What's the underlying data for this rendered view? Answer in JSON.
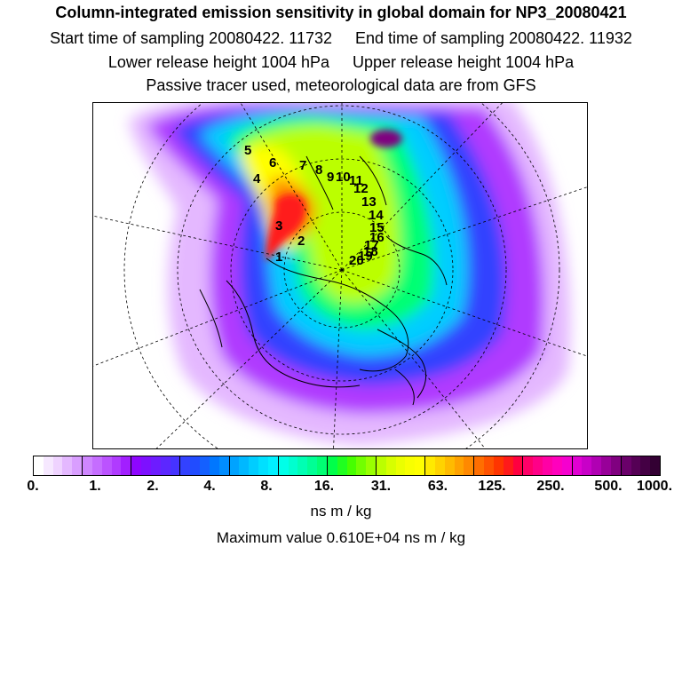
{
  "header": {
    "title": "Column-integrated emission sensitivity in global domain for NP3_20080421",
    "start_time": "Start time of sampling 20080422. 11732",
    "end_time": "End time of sampling 20080422. 11932",
    "lower_release": "Lower release height 1004 hPa",
    "upper_release": "Upper release height 1004 hPa",
    "tracer_note": "Passive tracer used, meteorological data are from GFS"
  },
  "map": {
    "projection": "polar stereographic (north pole)",
    "trajectory_labels": [
      "1",
      "2",
      "3",
      "4",
      "5",
      "6",
      "7",
      "8",
      "9",
      "10",
      "11",
      "12",
      "13",
      "14",
      "15",
      "16",
      "17",
      "18",
      "19",
      "20"
    ]
  },
  "colorbar": {
    "tick_labels": [
      "0.",
      "1.",
      "2.",
      "4.",
      "8.",
      "16.",
      "31.",
      "63.",
      "125.",
      "250.",
      "500.",
      "1000."
    ],
    "colors": [
      "#ffffff",
      "#f6e8ff",
      "#efd3ff",
      "#e4b8ff",
      "#d99eff",
      "#cf86ff",
      "#c56dff",
      "#bb53ff",
      "#b03bff",
      "#a21fff",
      "#8e06ff",
      "#7d10ff",
      "#6d1cff",
      "#5c27ff",
      "#4633ff",
      "#3342ff",
      "#214cff",
      "#1460ff",
      "#0077ff",
      "#008dff",
      "#00a3ff",
      "#00b8ff",
      "#00cdff",
      "#00e0ff",
      "#00f0ff",
      "#00ffe8",
      "#00ffcf",
      "#00ffb3",
      "#00ff95",
      "#00ff73",
      "#00ff4a",
      "#20ff20",
      "#46ff00",
      "#72ff00",
      "#99ff00",
      "#bbff00",
      "#d7ff00",
      "#ebff00",
      "#f8ff00",
      "#ffff00",
      "#ffea00",
      "#ffd300",
      "#ffbb00",
      "#ffa200",
      "#ff8900",
      "#ff6e00",
      "#ff5200",
      "#ff3500",
      "#ff1a1a",
      "#ff0040",
      "#ff0068",
      "#ff0088",
      "#ff00a5",
      "#ff00bd",
      "#f500cf",
      "#e000d2",
      "#c800c8",
      "#b000b3",
      "#980099",
      "#800080",
      "#6a006a",
      "#550055",
      "#440044",
      "#330033"
    ],
    "units": "ns m / kg",
    "maximum": "Maximum value  0.610E+04 ns m / kg"
  }
}
